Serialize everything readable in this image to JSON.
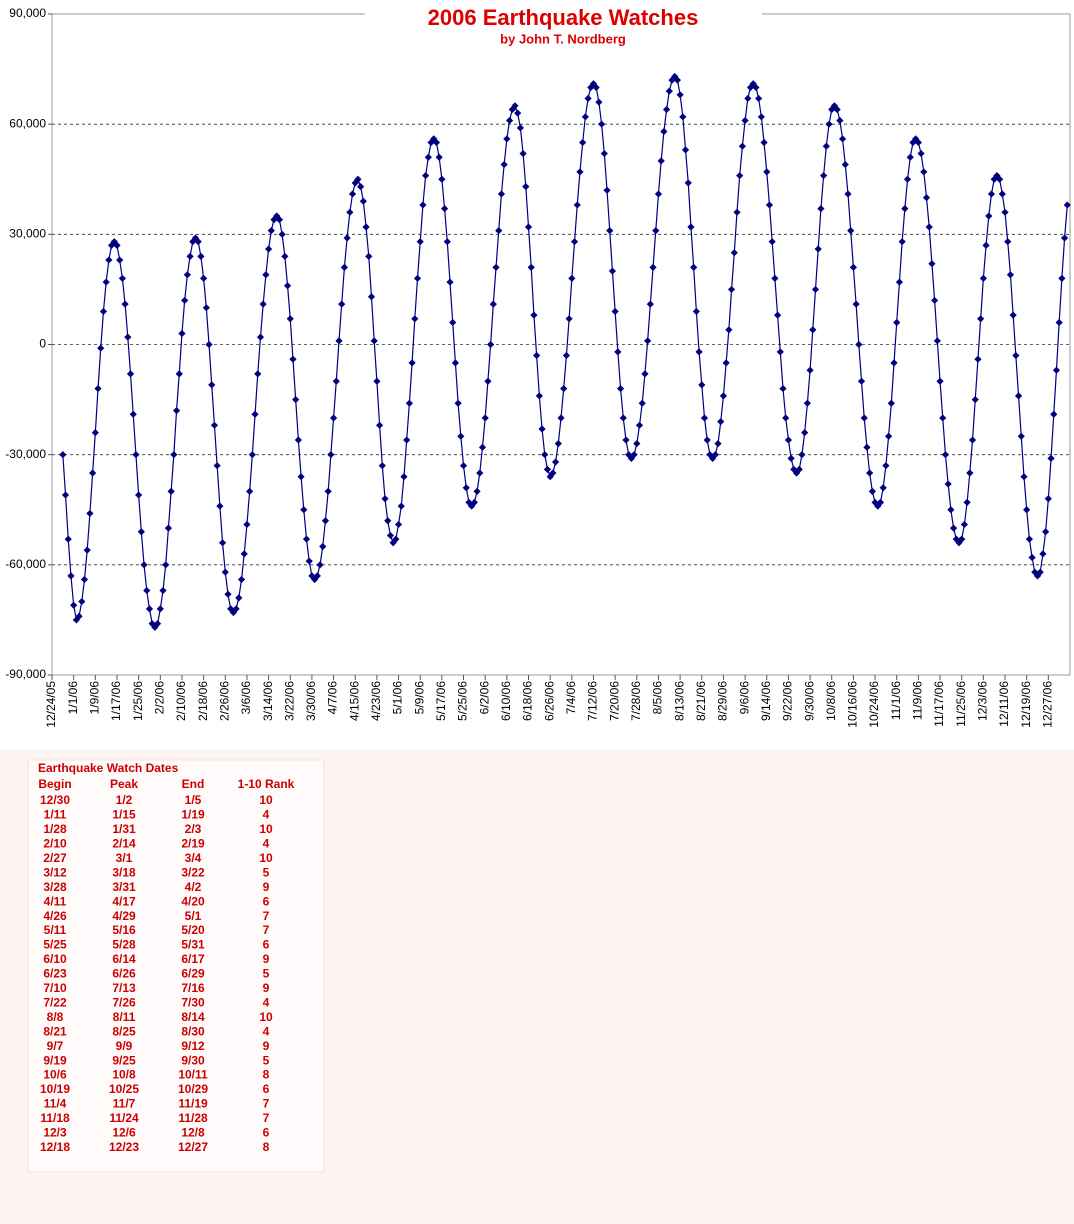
{
  "chart_data": {
    "type": "line",
    "title": "2006 Earthquake Watches",
    "subtitle": "by John T. Nordberg",
    "color": "#000080",
    "grid": true,
    "xlim": [
      0,
      376
    ],
    "ylim": [
      -90000,
      90000
    ],
    "yticks": [
      {
        "value": -90000,
        "label": "-90,000"
      },
      {
        "value": -60000,
        "label": "-60,000"
      },
      {
        "value": -30000,
        "label": "-30,000"
      },
      0,
      {
        "value": 30000,
        "label": "30,000"
      },
      {
        "value": 60000,
        "label": "60,000"
      },
      {
        "value": 90000,
        "label": "90,000"
      }
    ],
    "xticks": [
      {
        "value": 0,
        "label": "12/24/05"
      },
      {
        "value": 8,
        "label": "1/1/06"
      },
      {
        "value": 16,
        "label": "1/9/06"
      },
      {
        "value": 24,
        "label": "1/17/06"
      },
      {
        "value": 32,
        "label": "1/25/06"
      },
      {
        "value": 40,
        "label": "2/2/06"
      },
      {
        "value": 48,
        "label": "2/10/06"
      },
      {
        "value": 56,
        "label": "2/18/06"
      },
      {
        "value": 64,
        "label": "2/26/06"
      },
      {
        "value": 72,
        "label": "3/6/06"
      },
      {
        "value": 80,
        "label": "3/14/06"
      },
      {
        "value": 88,
        "label": "3/22/06"
      },
      {
        "value": 96,
        "label": "3/30/06"
      },
      {
        "value": 104,
        "label": "4/7/06"
      },
      {
        "value": 112,
        "label": "4/15/06"
      },
      {
        "value": 120,
        "label": "4/23/06"
      },
      {
        "value": 128,
        "label": "5/1/06"
      },
      {
        "value": 136,
        "label": "5/9/06"
      },
      {
        "value": 144,
        "label": "5/17/06"
      },
      {
        "value": 152,
        "label": "5/25/06"
      },
      {
        "value": 160,
        "label": "6/2/06"
      },
      {
        "value": 168,
        "label": "6/10/06"
      },
      {
        "value": 176,
        "label": "6/18/06"
      },
      {
        "value": 184,
        "label": "6/26/06"
      },
      {
        "value": 192,
        "label": "7/4/06"
      },
      {
        "value": 200,
        "label": "7/12/06"
      },
      {
        "value": 208,
        "label": "7/20/06"
      },
      {
        "value": 216,
        "label": "7/28/06"
      },
      {
        "value": 224,
        "label": "8/5/06"
      },
      {
        "value": 232,
        "label": "8/13/06"
      },
      {
        "value": 240,
        "label": "8/21/06"
      },
      {
        "value": 248,
        "label": "8/29/06"
      },
      {
        "value": 256,
        "label": "9/6/06"
      },
      {
        "value": 264,
        "label": "9/14/06"
      },
      {
        "value": 272,
        "label": "9/22/06"
      },
      {
        "value": 280,
        "label": "9/30/06"
      },
      {
        "value": 288,
        "label": "10/8/06"
      },
      {
        "value": 296,
        "label": "10/16/06"
      },
      {
        "value": 304,
        "label": "10/24/06"
      },
      {
        "value": 312,
        "label": "11/1/06"
      },
      {
        "value": 320,
        "label": "11/9/06"
      },
      {
        "value": 328,
        "label": "11/17/06"
      },
      {
        "value": 336,
        "label": "11/25/06"
      },
      {
        "value": 344,
        "label": "12/3/06"
      },
      {
        "value": 352,
        "label": "12/11/06"
      },
      {
        "value": 360,
        "label": "12/19/06"
      },
      {
        "value": 368,
        "label": "12/27/06"
      }
    ],
    "x": [
      4,
      5,
      6,
      7,
      8,
      9,
      10,
      11,
      12,
      13,
      14,
      15,
      16,
      17,
      18,
      19,
      20,
      21,
      22,
      23,
      24,
      25,
      26,
      27,
      28,
      29,
      30,
      31,
      32,
      33,
      34,
      35,
      36,
      37,
      38,
      39,
      40,
      41,
      42,
      43,
      44,
      45,
      46,
      47,
      48,
      49,
      50,
      51,
      52,
      53,
      54,
      55,
      56,
      57,
      58,
      59,
      60,
      61,
      62,
      63,
      64,
      65,
      66,
      67,
      68,
      69,
      70,
      71,
      72,
      73,
      74,
      75,
      76,
      77,
      78,
      79,
      80,
      81,
      82,
      83,
      84,
      85,
      86,
      87,
      88,
      89,
      90,
      91,
      92,
      93,
      94,
      95,
      96,
      97,
      98,
      99,
      100,
      101,
      102,
      103,
      104,
      105,
      106,
      107,
      108,
      109,
      110,
      111,
      112,
      113,
      114,
      115,
      116,
      117,
      118,
      119,
      120,
      121,
      122,
      123,
      124,
      125,
      126,
      127,
      128,
      129,
      130,
      131,
      132,
      133,
      134,
      135,
      136,
      137,
      138,
      139,
      140,
      141,
      142,
      143,
      144,
      145,
      146,
      147,
      148,
      149,
      150,
      151,
      152,
      153,
      154,
      155,
      156,
      157,
      158,
      159,
      160,
      161,
      162,
      163,
      164,
      165,
      166,
      167,
      168,
      169,
      170,
      171,
      172,
      173,
      174,
      175,
      176,
      177,
      178,
      179,
      180,
      181,
      182,
      183,
      184,
      185,
      186,
      187,
      188,
      189,
      190,
      191,
      192,
      193,
      194,
      195,
      196,
      197,
      198,
      199,
      200,
      201,
      202,
      203,
      204,
      205,
      206,
      207,
      208,
      209,
      210,
      211,
      212,
      213,
      214,
      215,
      216,
      217,
      218,
      219,
      220,
      221,
      222,
      223,
      224,
      225,
      226,
      227,
      228,
      229,
      230,
      231,
      232,
      233,
      234,
      235,
      236,
      237,
      238,
      239,
      240,
      241,
      242,
      243,
      244,
      245,
      246,
      247,
      248,
      249,
      250,
      251,
      252,
      253,
      254,
      255,
      256,
      257,
      258,
      259,
      260,
      261,
      262,
      263,
      264,
      265,
      266,
      267,
      268,
      269,
      270,
      271,
      272,
      273,
      274,
      275,
      276,
      277,
      278,
      279,
      280,
      281,
      282,
      283,
      284,
      285,
      286,
      287,
      288,
      289,
      290,
      291,
      292,
      293,
      294,
      295,
      296,
      297,
      298,
      299,
      300,
      301,
      302,
      303,
      304,
      305,
      306,
      307,
      308,
      309,
      310,
      311,
      312,
      313,
      314,
      315,
      316,
      317,
      318,
      319,
      320,
      321,
      322,
      323,
      324,
      325,
      326,
      327,
      328,
      329,
      330,
      331,
      332,
      333,
      334,
      335,
      336,
      337,
      338,
      339,
      340,
      341,
      342,
      343,
      344,
      345,
      346,
      347,
      348,
      349,
      350,
      351,
      352,
      353,
      354,
      355,
      356,
      357,
      358,
      359,
      360,
      361,
      362,
      363,
      364,
      365,
      366,
      367,
      368,
      369,
      370,
      371,
      372,
      373,
      374,
      375
    ],
    "values": [
      -30000,
      -41000,
      -53000,
      -63000,
      -71000,
      -75000,
      -74000,
      -70000,
      -64000,
      -56000,
      -46000,
      -35000,
      -24000,
      -12000,
      -1000,
      9000,
      17000,
      23000,
      27000,
      28000,
      27000,
      23000,
      18000,
      11000,
      2000,
      -8000,
      -19000,
      -30000,
      -41000,
      -51000,
      -60000,
      -67000,
      -72000,
      -76000,
      -77000,
      -76000,
      -72000,
      -67000,
      -60000,
      -50000,
      -40000,
      -30000,
      -18000,
      -8000,
      3000,
      12000,
      19000,
      24000,
      28000,
      29000,
      28000,
      24000,
      18000,
      10000,
      0,
      -11000,
      -22000,
      -33000,
      -44000,
      -54000,
      -62000,
      -68000,
      -72000,
      -73000,
      -72000,
      -69000,
      -64000,
      -57000,
      -49000,
      -40000,
      -30000,
      -19000,
      -8000,
      2000,
      11000,
      19000,
      26000,
      31000,
      34000,
      35000,
      34000,
      30000,
      24000,
      16000,
      7000,
      -4000,
      -15000,
      -26000,
      -36000,
      -45000,
      -53000,
      -59000,
      -63000,
      -64000,
      -63000,
      -60000,
      -55000,
      -48000,
      -40000,
      -30000,
      -20000,
      -10000,
      1000,
      11000,
      21000,
      29000,
      36000,
      41000,
      44000,
      45000,
      43000,
      39000,
      32000,
      24000,
      13000,
      1000,
      -10000,
      -22000,
      -33000,
      -42000,
      -48000,
      -52000,
      -54000,
      -53000,
      -49000,
      -44000,
      -36000,
      -26000,
      -16000,
      -5000,
      7000,
      18000,
      28000,
      38000,
      46000,
      51000,
      55000,
      56000,
      55000,
      51000,
      45000,
      37000,
      28000,
      17000,
      6000,
      -5000,
      -16000,
      -25000,
      -33000,
      -39000,
      -43000,
      -44000,
      -43000,
      -40000,
      -35000,
      -28000,
      -20000,
      -10000,
      0,
      11000,
      21000,
      31000,
      41000,
      49000,
      56000,
      61000,
      64000,
      65000,
      63000,
      59000,
      52000,
      43000,
      32000,
      21000,
      8000,
      -3000,
      -14000,
      -23000,
      -30000,
      -34000,
      -36000,
      -35000,
      -32000,
      -27000,
      -20000,
      -12000,
      -3000,
      7000,
      18000,
      28000,
      38000,
      47000,
      55000,
      62000,
      67000,
      70000,
      71000,
      70000,
      66000,
      60000,
      52000,
      42000,
      31000,
      20000,
      9000,
      -2000,
      -12000,
      -20000,
      -26000,
      -30000,
      -31000,
      -30000,
      -27000,
      -22000,
      -16000,
      -8000,
      1000,
      11000,
      21000,
      31000,
      41000,
      50000,
      58000,
      64000,
      69000,
      72000,
      73000,
      72000,
      68000,
      62000,
      53000,
      44000,
      32000,
      21000,
      9000,
      -2000,
      -11000,
      -20000,
      -26000,
      -30000,
      -31000,
      -30000,
      -27000,
      -21000,
      -14000,
      -5000,
      4000,
      15000,
      25000,
      36000,
      46000,
      54000,
      61000,
      67000,
      70000,
      71000,
      70000,
      67000,
      62000,
      55000,
      47000,
      38000,
      28000,
      18000,
      8000,
      -2000,
      -12000,
      -20000,
      -26000,
      -31000,
      -34000,
      -35000,
      -34000,
      -30000,
      -24000,
      -16000,
      -7000,
      4000,
      15000,
      26000,
      37000,
      46000,
      54000,
      60000,
      64000,
      65000,
      64000,
      61000,
      56000,
      49000,
      41000,
      31000,
      21000,
      11000,
      0,
      -10000,
      -20000,
      -28000,
      -35000,
      -40000,
      -43000,
      -44000,
      -43000,
      -39000,
      -33000,
      -25000,
      -16000,
      -5000,
      6000,
      17000,
      28000,
      37000,
      45000,
      51000,
      55000,
      56000,
      55000,
      52000,
      47000,
      40000,
      32000,
      22000,
      12000,
      1000,
      -10000,
      -20000,
      -30000,
      -38000,
      -45000,
      -50000,
      -53000,
      -54000,
      -53000,
      -49000,
      -43000,
      -35000,
      -26000,
      -15000,
      -4000,
      7000,
      18000,
      27000,
      35000,
      41000,
      45000,
      46000,
      45000,
      41000,
      36000,
      28000,
      19000,
      8000,
      -3000,
      -14000,
      -25000,
      -36000,
      -45000,
      -53000,
      -58000,
      -62000,
      -63000,
      -62000,
      -57000,
      -51000,
      -42000,
      -31000,
      -19000,
      -7000,
      6000,
      18000,
      29000,
      38000
    ]
  },
  "table": {
    "title": "Earthquake Watch Dates",
    "columns": [
      "Begin",
      "Peak",
      "End",
      "1-10 Rank"
    ],
    "rows": [
      [
        "12/30",
        "1/2",
        "1/5",
        10
      ],
      [
        "1/11",
        "1/15",
        "1/19",
        4
      ],
      [
        "1/28",
        "1/31",
        "2/3",
        10
      ],
      [
        "2/10",
        "2/14",
        "2/19",
        4
      ],
      [
        "2/27",
        "3/1",
        "3/4",
        10
      ],
      [
        "3/12",
        "3/18",
        "3/22",
        5
      ],
      [
        "3/28",
        "3/31",
        "4/2",
        9
      ],
      [
        "4/11",
        "4/17",
        "4/20",
        6
      ],
      [
        "4/26",
        "4/29",
        "5/1",
        7
      ],
      [
        "5/11",
        "5/16",
        "5/20",
        7
      ],
      [
        "5/25",
        "5/28",
        "5/31",
        6
      ],
      [
        "6/10",
        "6/14",
        "6/17",
        9
      ],
      [
        "6/23",
        "6/26",
        "6/29",
        5
      ],
      [
        "7/10",
        "7/13",
        "7/16",
        9
      ],
      [
        "7/22",
        "7/26",
        "7/30",
        4
      ],
      [
        "8/8",
        "8/11",
        "8/14",
        10
      ],
      [
        "8/21",
        "8/25",
        "8/30",
        4
      ],
      [
        "9/7",
        "9/9",
        "9/12",
        9
      ],
      [
        "9/19",
        "9/25",
        "9/30",
        5
      ],
      [
        "10/6",
        "10/8",
        "10/11",
        8
      ],
      [
        "10/19",
        "10/25",
        "10/29",
        6
      ],
      [
        "11/4",
        "11/7",
        "11/19",
        7
      ],
      [
        "11/18",
        "11/24",
        "11/28",
        7
      ],
      [
        "12/3",
        "12/6",
        "12/8",
        6
      ],
      [
        "12/18",
        "12/23",
        "12/27",
        8
      ]
    ]
  }
}
